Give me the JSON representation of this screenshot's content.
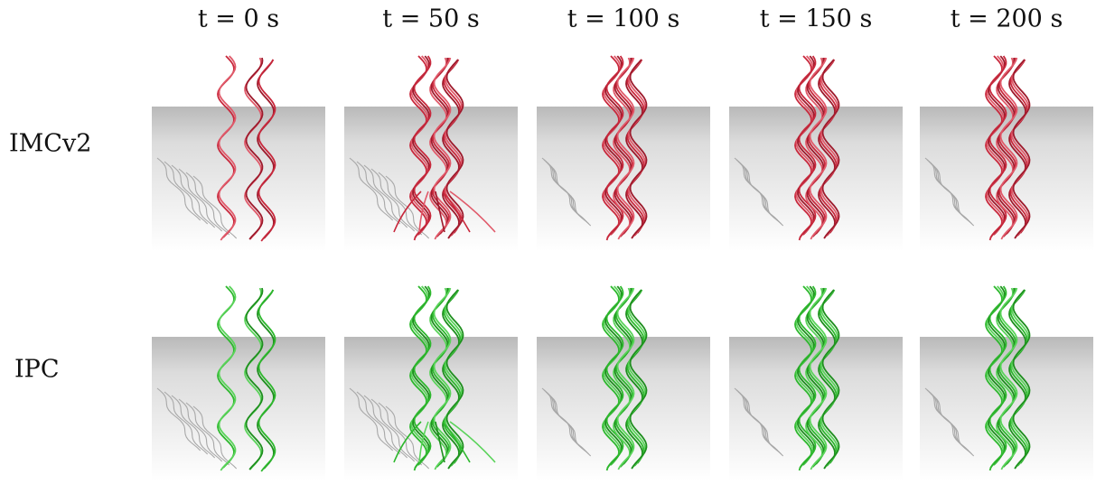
{
  "columns": [
    "t = 0 s",
    "t = 50 s",
    "t = 100 s",
    "t = 150 s",
    "t = 200 s"
  ],
  "rows": [
    "IMCv2",
    "IPC"
  ]
}
